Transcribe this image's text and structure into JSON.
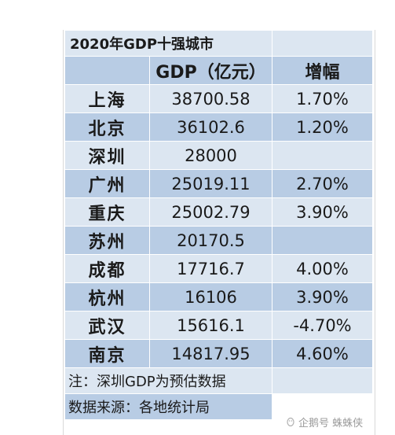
{
  "table": {
    "title": "2020年GDP十强城市",
    "header": {
      "gdp": "GDP（亿元）",
      "growth": "增幅"
    },
    "rows": [
      {
        "city": "上海",
        "gdp": "38700.58",
        "growth": "1.70%"
      },
      {
        "city": "北京",
        "gdp": "36102.6",
        "growth": "1.20%"
      },
      {
        "city": "深圳",
        "gdp": "28000",
        "growth": ""
      },
      {
        "city": "广州",
        "gdp": "25019.11",
        "growth": "2.70%"
      },
      {
        "city": "重庆",
        "gdp": "25002.79",
        "growth": "3.90%"
      },
      {
        "city": "苏州",
        "gdp": "20170.5",
        "growth": ""
      },
      {
        "city": "成都",
        "gdp": "17716.7",
        "growth": "4.00%"
      },
      {
        "city": "杭州",
        "gdp": "16106",
        "growth": "3.90%"
      },
      {
        "city": "武汉",
        "gdp": "15616.1",
        "growth": "-4.70%"
      },
      {
        "city": "南京",
        "gdp": "14817.95",
        "growth": "4.60%"
      }
    ],
    "note": "注：深圳GDP为预估数据",
    "source": "数据来源：各地统计局"
  },
  "watermark": {
    "text": "企鹅号 蛛蛛侠",
    "icon": "penguin-icon"
  }
}
